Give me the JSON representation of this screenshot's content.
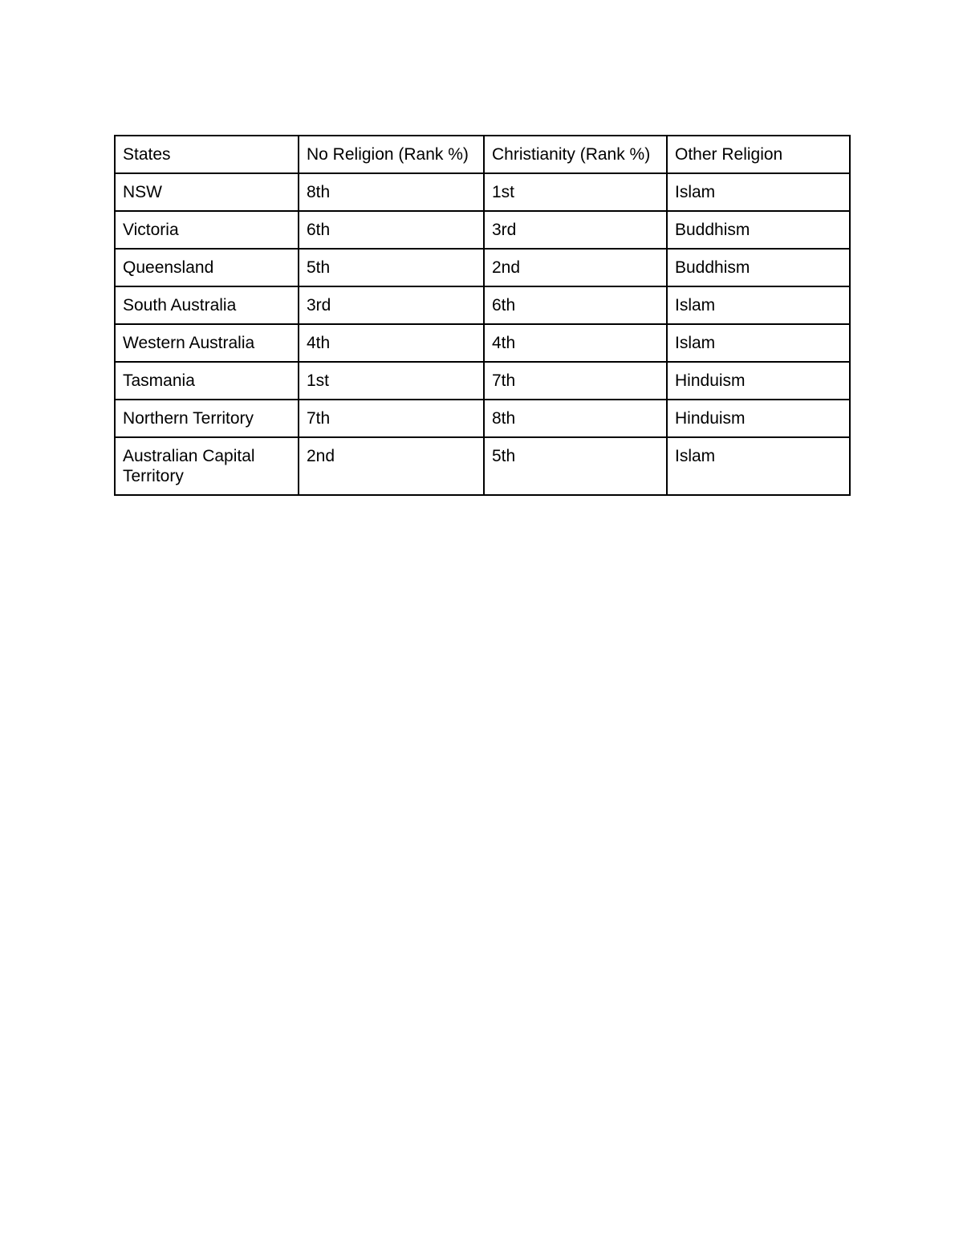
{
  "page": {
    "background": "#ffffff"
  },
  "table": {
    "style": {
      "border_color": "#000000",
      "text_color": "#000000",
      "background": "#ffffff"
    },
    "columns": [
      "States",
      "No Religion (Rank %)",
      "Christianity (Rank %)",
      "Other Religion"
    ],
    "rows": [
      [
        "NSW",
        "8th",
        "1st",
        "Islam"
      ],
      [
        "Victoria",
        "6th",
        "3rd",
        "Buddhism"
      ],
      [
        "Queensland",
        "5th",
        "2nd",
        "Buddhism"
      ],
      [
        "South Australia",
        "3rd",
        "6th",
        "Islam"
      ],
      [
        "Western Australia",
        "4th",
        "4th",
        "Islam"
      ],
      [
        "Tasmania",
        "1st",
        "7th",
        "Hinduism"
      ],
      [
        "Northern Territory",
        "7th",
        "8th",
        "Hinduism"
      ],
      [
        "Australian Capital Territory",
        "2nd",
        "5th",
        "Islam"
      ]
    ]
  }
}
